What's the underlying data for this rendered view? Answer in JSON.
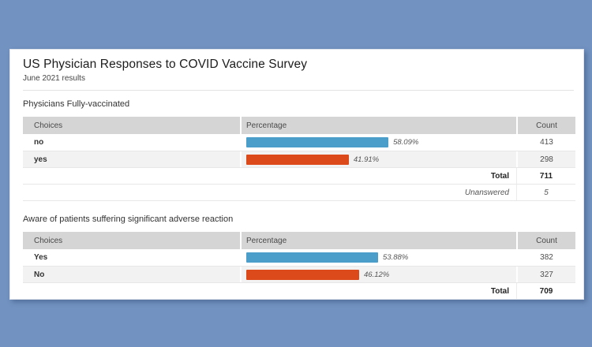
{
  "page": {
    "title": "US Physician Responses to COVID Vaccine Survey",
    "subtitle": "June 2021 results"
  },
  "colors": {
    "background": "#7292c1",
    "panel": "#ffffff",
    "table_header_bg": "#d5d5d5",
    "row_alt_bg": "#f2f2f2",
    "bar_blue": "#4b9dca",
    "bar_red": "#dc4a1b"
  },
  "table_columns": {
    "choices": "Choices",
    "percentage": "Percentage",
    "count": "Count"
  },
  "sections": [
    {
      "title": "Physicians Fully-vaccinated",
      "rows": [
        {
          "choice": "no",
          "pct": 58.09,
          "pct_label": "58.09%",
          "count": "413",
          "bar_color": "#4b9dca"
        },
        {
          "choice": "yes",
          "pct": 41.91,
          "pct_label": "41.91%",
          "count": "298",
          "bar_color": "#dc4a1b"
        }
      ],
      "footer": [
        {
          "label": "Total",
          "value": "711",
          "style": "bold"
        },
        {
          "label": "Unanswered",
          "value": "5",
          "style": "italic"
        }
      ]
    },
    {
      "title": "Aware of patients suffering significant adverse reaction",
      "rows": [
        {
          "choice": "Yes",
          "pct": 53.88,
          "pct_label": "53.88%",
          "count": "382",
          "bar_color": "#4b9dca"
        },
        {
          "choice": "No",
          "pct": 46.12,
          "pct_label": "46.12%",
          "count": "327",
          "bar_color": "#dc4a1b"
        }
      ],
      "footer": [
        {
          "label": "Total",
          "value": "709",
          "style": "bold"
        }
      ]
    }
  ],
  "chart_data": [
    {
      "type": "bar",
      "title": "Physicians Fully-vaccinated",
      "categories": [
        "no",
        "yes"
      ],
      "series": [
        {
          "name": "Percentage",
          "values": [
            58.09,
            41.91
          ]
        },
        {
          "name": "Count",
          "values": [
            413,
            298
          ]
        }
      ],
      "annotations": {
        "total": 711,
        "unanswered": 5
      },
      "xlim": [
        0,
        100
      ],
      "bar_colors": [
        "#4b9dca",
        "#dc4a1b"
      ]
    },
    {
      "type": "bar",
      "title": "Aware of patients suffering significant adverse reaction",
      "categories": [
        "Yes",
        "No"
      ],
      "series": [
        {
          "name": "Percentage",
          "values": [
            53.88,
            46.12
          ]
        },
        {
          "name": "Count",
          "values": [
            382,
            327
          ]
        }
      ],
      "annotations": {
        "total": 709
      },
      "xlim": [
        0,
        100
      ],
      "bar_colors": [
        "#4b9dca",
        "#dc4a1b"
      ]
    }
  ]
}
